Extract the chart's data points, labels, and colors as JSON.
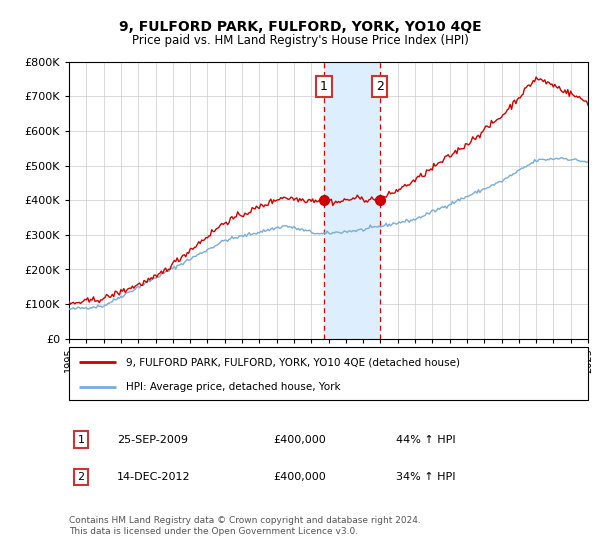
{
  "title": "9, FULFORD PARK, FULFORD, YORK, YO10 4QE",
  "subtitle": "Price paid vs. HM Land Registry's House Price Index (HPI)",
  "legend_line1": "9, FULFORD PARK, FULFORD, YORK, YO10 4QE (detached house)",
  "legend_line2": "HPI: Average price, detached house, York",
  "annotation1_date": "25-SEP-2009",
  "annotation1_price": "£400,000",
  "annotation1_hpi": "44% ↑ HPI",
  "annotation2_date": "14-DEC-2012",
  "annotation2_price": "£400,000",
  "annotation2_hpi": "34% ↑ HPI",
  "footer": "Contains HM Land Registry data © Crown copyright and database right 2024.\nThis data is licensed under the Open Government Licence v3.0.",
  "event1_year": 2009.73,
  "event2_year": 2012.96,
  "event1_price": 400000,
  "event2_price": 400000,
  "red_line_color": "#cc0000",
  "blue_line_color": "#7aadd4",
  "shade_color": "#ddeeff",
  "vline_color": "#cc0000",
  "box_color": "#cc3333",
  "ylim_min": 0,
  "ylim_max": 800000,
  "xlim_min": 1995,
  "xlim_max": 2025
}
